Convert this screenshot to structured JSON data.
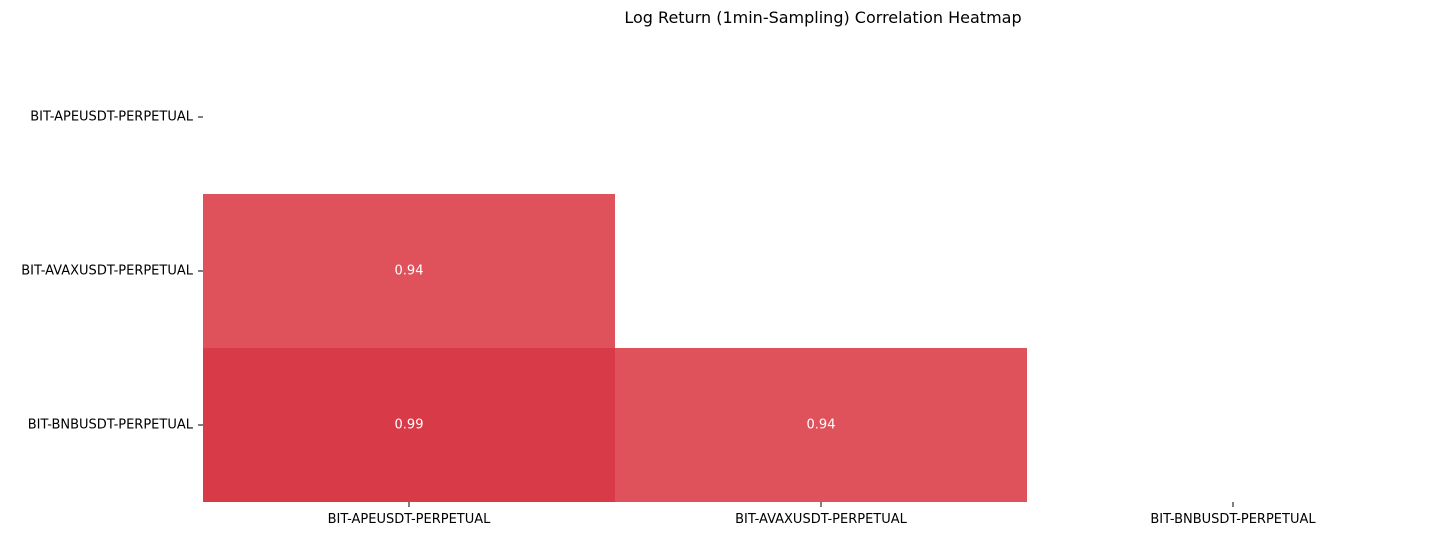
{
  "chart_data": {
    "type": "heatmap",
    "title": "Log Return (1min-Sampling) Correlation Heatmap",
    "xlabel": "",
    "ylabel": "",
    "x_categories": [
      "BIT-APEUSDT-PERPETUAL",
      "BIT-AVAXUSDT-PERPETUAL",
      "BIT-BNBUSDT-PERPETUAL"
    ],
    "y_categories": [
      "BIT-APEUSDT-PERPETUAL",
      "BIT-AVAXUSDT-PERPETUAL",
      "BIT-BNBUSDT-PERPETUAL"
    ],
    "values": [
      [
        null,
        null,
        null
      ],
      [
        0.94,
        null,
        null
      ],
      [
        0.99,
        0.94,
        null
      ]
    ],
    "value_labels": [
      [
        null,
        null,
        null
      ],
      [
        "0.94",
        null,
        null
      ],
      [
        "0.99",
        "0.94",
        null
      ]
    ],
    "mask": "upper-triangle-and-diagonal",
    "colorbar": false,
    "grid": false,
    "colors": {
      "high": "#d93a47",
      "mid": "#df525b",
      "cell_text": "#ffffff"
    }
  }
}
